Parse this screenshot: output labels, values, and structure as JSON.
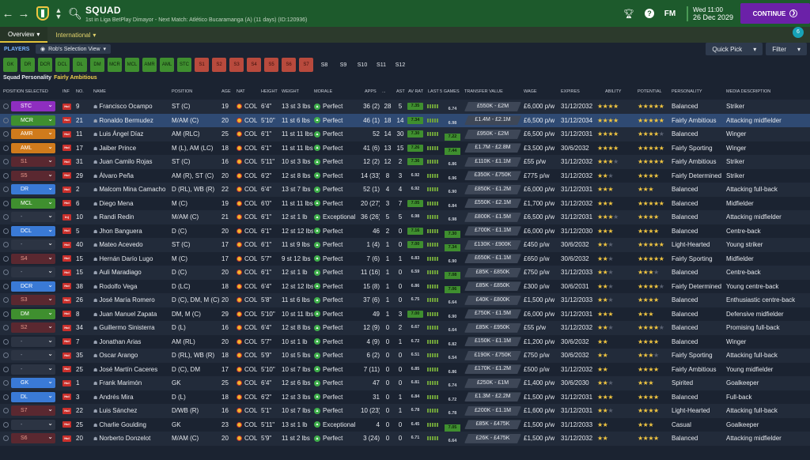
{
  "header": {
    "title": "SQUAD",
    "subtitle": "1st in Liga BetPlay Dimayor - Next Match: Atlético Bucaramanga (A) (11 days) (ID:120936)",
    "date_line1": "Wed 11:00",
    "date_line2": "26 Dec 2029",
    "continue_label": "CONTINUE",
    "fm_label": "FM",
    "icons": [
      "back-arrow-icon",
      "forward-arrow-icon",
      "club-badge",
      "search-icon",
      "trophy-icon",
      "help-icon"
    ]
  },
  "tabs": [
    {
      "label": "Overview",
      "active": true
    },
    {
      "label": "International",
      "active": false
    }
  ],
  "notification_count": "6",
  "toolbar": {
    "players_label": "PLAYERS",
    "view_label": "Rob's Selection View",
    "quick_pick_label": "Quick Pick",
    "filter_label": "Filter"
  },
  "position_chips": [
    {
      "label": "GK",
      "state": "g"
    },
    {
      "label": "DR",
      "state": "g"
    },
    {
      "label": "DCR",
      "state": "g"
    },
    {
      "label": "DCL",
      "state": "g"
    },
    {
      "label": "DL",
      "state": "g"
    },
    {
      "label": "DM",
      "state": "g"
    },
    {
      "label": "MCR",
      "state": "g"
    },
    {
      "label": "MCL",
      "state": "g"
    },
    {
      "label": "AMR",
      "state": "g"
    },
    {
      "label": "AML",
      "state": "g"
    },
    {
      "label": "STC",
      "state": "g"
    },
    {
      "label": "S1",
      "state": "r"
    },
    {
      "label": "S2",
      "state": "r"
    },
    {
      "label": "S3",
      "state": "r"
    },
    {
      "label": "S4",
      "state": "r"
    },
    {
      "label": "S5",
      "state": "r"
    },
    {
      "label": "S6",
      "state": "r"
    },
    {
      "label": "S7",
      "state": "r"
    },
    {
      "label": "S8",
      "state": "n"
    },
    {
      "label": "S9",
      "state": "n"
    },
    {
      "label": "S10",
      "state": "n"
    },
    {
      "label": "S11",
      "state": "n"
    },
    {
      "label": "S12",
      "state": "n"
    }
  ],
  "squad_personality_label": "Squad Personality",
  "squad_personality_value": "Fairly Ambitious",
  "columns": [
    "POSITION SELECTED",
    "INF",
    "NO.",
    "NAME",
    "POSITION",
    "AGE",
    "NAT",
    "HEIGHT",
    "WEIGHT",
    "MORALE",
    "APPS",
    "...",
    "AST",
    "AV RAT",
    "LAST 5 GAMES",
    "TRANSFER VALUE",
    "WAGE",
    "EXPIRES",
    "ABILITY",
    "POTENTIAL",
    "PERSONALITY",
    "MEDIA DESCRIPTION"
  ],
  "players": [
    {
      "sel": "STC",
      "style": "p-purple",
      "inf": "Hol",
      "no": "9",
      "name": "Francisco Ocampo",
      "pos": "ST (C)",
      "age": "19",
      "nat": "COL",
      "ht": "6'4\"",
      "wt": "13 st 3 lbs",
      "morale": "Perfect",
      "apps": "36 (2)",
      "gls": "28",
      "ast": "5",
      "avr": "7.35",
      "avr_c": "hi",
      "l5": "6.74",
      "l5_c": "lo",
      "tv": "£550K - £2M",
      "wage": "£6,000 p/w",
      "exp": "31/12/2032",
      "ab": "★★★★",
      "ab_e": "",
      "pot": "★★★★★",
      "pot_e": "",
      "pers": "Balanced",
      "media": "Striker"
    },
    {
      "sel": "MCR",
      "style": "p-green",
      "inf": "Hol",
      "no": "21",
      "name": "Ronaldo Bermudez",
      "pos": "M/AM (C)",
      "age": "20",
      "nat": "COL",
      "ht": "5'10\"",
      "wt": "11 st 6 lbs",
      "morale": "Perfect",
      "apps": "46 (1)",
      "gls": "18",
      "ast": "14",
      "avr": "7.34",
      "avr_c": "hi",
      "l5": "6.98",
      "l5_c": "lo",
      "tv": "£1.4M - £2.1M",
      "wage": "£6,500 p/w",
      "exp": "31/12/2034",
      "ab": "★★★★",
      "ab_e": "",
      "pot": "★★★★★",
      "pot_e": "",
      "pers": "Fairly Ambitious",
      "media": "Attacking midfielder",
      "selected": true
    },
    {
      "sel": "AMR",
      "style": "p-orange",
      "inf": "Hol",
      "no": "11",
      "name": "Luis Ángel Díaz",
      "pos": "AM (RLC)",
      "age": "25",
      "nat": "COL",
      "ht": "6'1\"",
      "wt": "11 st 11 lbs",
      "morale": "Perfect",
      "apps": "52",
      "gls": "14",
      "ast": "30",
      "avr": "7.30",
      "avr_c": "hi",
      "l5": "7.22",
      "l5_c": "hi",
      "tv": "£950K - £2M",
      "wage": "£6,500 p/w",
      "exp": "31/12/2031",
      "ab": "★★★★",
      "ab_e": "",
      "pot": "★★★★",
      "pot_e": "★",
      "pers": "Balanced",
      "media": "Winger"
    },
    {
      "sel": "AML",
      "style": "p-orange",
      "inf": "Hol",
      "no": "17",
      "name": "Jaiber Prince",
      "pos": "M (L), AM (LC)",
      "age": "18",
      "nat": "COL",
      "ht": "6'1\"",
      "wt": "11 st 11 lbs",
      "morale": "Perfect",
      "apps": "41 (6)",
      "gls": "13",
      "ast": "15",
      "avr": "7.26",
      "avr_c": "hi",
      "l5": "7.44",
      "l5_c": "hi",
      "tv": "£1.7M - £2.8M",
      "wage": "£3,500 p/w",
      "exp": "30/6/2032",
      "ab": "★★★★",
      "ab_e": "",
      "pot": "★★★★★",
      "pot_e": "",
      "pers": "Fairly Sporting",
      "media": "Winger"
    },
    {
      "sel": "S1",
      "style": "p-red",
      "inf": "Hol",
      "no": "31",
      "name": "Juan Camilo Rojas",
      "pos": "ST (C)",
      "age": "16",
      "nat": "COL",
      "ht": "5'11\"",
      "wt": "10 st 3 lbs",
      "morale": "Perfect",
      "apps": "12 (2)",
      "gls": "12",
      "ast": "2",
      "avr": "7.36",
      "avr_c": "hi",
      "l5": "6.86",
      "l5_c": "lo",
      "tv": "£110K - £1.1M",
      "wage": "£55 p/w",
      "exp": "31/12/2032",
      "ab": "★★★",
      "ab_e": "★",
      "pot": "★★★★★",
      "pot_e": "",
      "pers": "Fairly Ambitious",
      "media": "Striker"
    },
    {
      "sel": "S5",
      "style": "p-red",
      "inf": "Hol",
      "no": "29",
      "name": "Álvaro Peña",
      "pos": "AM (R), ST (C)",
      "age": "20",
      "nat": "COL",
      "ht": "6'2\"",
      "wt": "12 st 8 lbs",
      "morale": "Perfect",
      "apps": "14 (33)",
      "gls": "8",
      "ast": "3",
      "avr": "6.92",
      "avr_c": "lo",
      "l5": "6.96",
      "l5_c": "lo",
      "tv": "£350K - £750K",
      "wage": "£775 p/w",
      "exp": "31/12/2032",
      "ab": "★★",
      "ab_e": "★",
      "pot": "★★★★",
      "pot_e": "",
      "pers": "Fairly Determined",
      "media": "Striker"
    },
    {
      "sel": "DR",
      "style": "p-blue",
      "inf": "Hol",
      "no": "2",
      "name": "Malcom Mina Camacho",
      "pos": "D (RL), WB (R)",
      "age": "22",
      "nat": "COL",
      "ht": "6'4\"",
      "wt": "13 st 7 lbs",
      "morale": "Perfect",
      "apps": "52 (1)",
      "gls": "4",
      "ast": "4",
      "avr": "6.92",
      "avr_c": "lo",
      "l5": "6.90",
      "l5_c": "lo",
      "tv": "£850K - £1.2M",
      "wage": "£6,000 p/w",
      "exp": "31/12/2031",
      "ab": "★★★",
      "ab_e": "",
      "pot": "★★★",
      "pot_e": "",
      "pers": "Balanced",
      "media": "Attacking full-back"
    },
    {
      "sel": "MCL",
      "style": "p-green",
      "inf": "Hol",
      "no": "6",
      "name": "Diego Mena",
      "pos": "M (C)",
      "age": "19",
      "nat": "COL",
      "ht": "6'0\"",
      "wt": "11 st 11 lbs",
      "morale": "Perfect",
      "apps": "20 (27)",
      "gls": "3",
      "ast": "7",
      "avr": "7.05",
      "avr_c": "hi",
      "l5": "6.84",
      "l5_c": "lo",
      "tv": "£550K - £2.1M",
      "wage": "£1,700 p/w",
      "exp": "31/12/2032",
      "ab": "★★★",
      "ab_e": "",
      "pot": "★★★★★",
      "pot_e": "",
      "pers": "Balanced",
      "media": "Midfielder"
    },
    {
      "sel": "-",
      "style": "p-dark",
      "inf": "Inj",
      "no": "10",
      "name": "Randi Redin",
      "pos": "M/AM (C)",
      "age": "21",
      "nat": "COL",
      "ht": "6'1\"",
      "wt": "12 st 1 lb",
      "morale": "Exceptional",
      "apps": "36 (26)",
      "gls": "5",
      "ast": "5",
      "avr": "6.98",
      "avr_c": "lo",
      "l5": "6.98",
      "l5_c": "lo",
      "tv": "£800K - £1.5M",
      "wage": "£6,500 p/w",
      "exp": "31/12/2031",
      "ab": "★★★",
      "ab_e": "★",
      "pot": "★★★★",
      "pot_e": "",
      "pers": "Balanced",
      "media": "Attacking midfielder"
    },
    {
      "sel": "DCL",
      "style": "p-blue",
      "inf": "Hol",
      "no": "5",
      "name": "Jhon Banguera",
      "pos": "D (C)",
      "age": "20",
      "nat": "COL",
      "ht": "6'1\"",
      "wt": "12 st 12 lbs",
      "morale": "Perfect",
      "apps": "46",
      "gls": "2",
      "ast": "0",
      "avr": "7.16",
      "avr_c": "hi",
      "l5": "7.30",
      "l5_c": "hi",
      "tv": "£700K - £1.1M",
      "wage": "£6,000 p/w",
      "exp": "31/12/2030",
      "ab": "★★★",
      "ab_e": "",
      "pot": "★★★★",
      "pot_e": "",
      "pers": "Balanced",
      "media": "Centre-back"
    },
    {
      "sel": "-",
      "style": "p-dark",
      "inf": "Hol",
      "no": "40",
      "name": "Mateo Acevedo",
      "pos": "ST (C)",
      "age": "17",
      "nat": "COL",
      "ht": "6'1\"",
      "wt": "11 st 9 lbs",
      "morale": "Perfect",
      "apps": "1 (4)",
      "gls": "1",
      "ast": "0",
      "avr": "7.00",
      "avr_c": "hi",
      "l5": "7.34",
      "l5_c": "hi",
      "tv": "£130K - £900K",
      "wage": "£450 p/w",
      "exp": "30/6/2032",
      "ab": "★★",
      "ab_e": "★",
      "pot": "★★★★★",
      "pot_e": "",
      "pers": "Light-Hearted",
      "media": "Young striker"
    },
    {
      "sel": "S4",
      "style": "p-red",
      "inf": "Hol",
      "no": "15",
      "name": "Hernán Darío Lugo",
      "pos": "M (C)",
      "age": "17",
      "nat": "COL",
      "ht": "5'7\"",
      "wt": "9 st 12 lbs",
      "morale": "Perfect",
      "apps": "7 (6)",
      "gls": "1",
      "ast": "1",
      "avr": "6.83",
      "avr_c": "lo",
      "l5": "6.90",
      "l5_c": "lo",
      "tv": "£650K - £1.1M",
      "wage": "£650 p/w",
      "exp": "30/6/2032",
      "ab": "★★",
      "ab_e": "★",
      "pot": "★★★★★",
      "pot_e": "",
      "pers": "Fairly Sporting",
      "media": "Midfielder"
    },
    {
      "sel": "-",
      "style": "p-dark",
      "inf": "Hol",
      "no": "15",
      "name": "Auli Maradiago",
      "pos": "D (C)",
      "age": "20",
      "nat": "COL",
      "ht": "6'1\"",
      "wt": "12 st 1 lb",
      "morale": "Perfect",
      "apps": "11 (16)",
      "gls": "1",
      "ast": "0",
      "avr": "6.59",
      "avr_c": "lo",
      "l5": "7.08",
      "l5_c": "hi",
      "tv": "£85K - £850K",
      "wage": "£750 p/w",
      "exp": "31/12/2033",
      "ab": "★★",
      "ab_e": "★",
      "pot": "★★★",
      "pot_e": "★",
      "pers": "Balanced",
      "media": "Centre-back"
    },
    {
      "sel": "DCR",
      "style": "p-blue",
      "inf": "Hol",
      "no": "38",
      "name": "Rodolfo Vega",
      "pos": "D (LC)",
      "age": "18",
      "nat": "COL",
      "ht": "6'4\"",
      "wt": "12 st 12 lbs",
      "morale": "Perfect",
      "apps": "15 (8)",
      "gls": "1",
      "ast": "0",
      "avr": "6.86",
      "avr_c": "lo",
      "l5": "7.06",
      "l5_c": "hi",
      "tv": "£85K - £850K",
      "wage": "£300 p/w",
      "exp": "30/6/2031",
      "ab": "★★",
      "ab_e": "★",
      "pot": "★★★★",
      "pot_e": "★",
      "pers": "Fairly Determined",
      "media": "Young centre-back"
    },
    {
      "sel": "S3",
      "style": "p-red",
      "inf": "Hol",
      "no": "26",
      "name": "José María Romero",
      "pos": "D (C), DM, M (C)",
      "age": "20",
      "nat": "COL",
      "ht": "5'8\"",
      "wt": "11 st 6 lbs",
      "morale": "Perfect",
      "apps": "37 (6)",
      "gls": "1",
      "ast": "0",
      "avr": "6.75",
      "avr_c": "lo",
      "l5": "6.64",
      "l5_c": "lo",
      "tv": "£40K - £800K",
      "wage": "£1,500 p/w",
      "exp": "31/12/2033",
      "ab": "★★",
      "ab_e": "★",
      "pot": "★★★★",
      "pot_e": "",
      "pers": "Balanced",
      "media": "Enthusiastic centre-back"
    },
    {
      "sel": "DM",
      "style": "p-green",
      "inf": "Hol",
      "no": "8",
      "name": "Juan Manuel Zapata",
      "pos": "DM, M (C)",
      "age": "29",
      "nat": "COL",
      "ht": "5'10\"",
      "wt": "10 st 11 lbs",
      "morale": "Perfect",
      "apps": "49",
      "gls": "1",
      "ast": "3",
      "avr": "7.00",
      "avr_c": "hi",
      "l5": "6.90",
      "l5_c": "lo",
      "tv": "£750K - £1.5M",
      "wage": "£6,000 p/w",
      "exp": "31/12/2031",
      "ab": "★★★",
      "ab_e": "",
      "pot": "★★★",
      "pot_e": "",
      "pers": "Balanced",
      "media": "Defensive midfielder"
    },
    {
      "sel": "S2",
      "style": "p-red",
      "inf": "Hol",
      "no": "34",
      "name": "Guillermo Sinisterra",
      "pos": "D (L)",
      "age": "16",
      "nat": "COL",
      "ht": "6'4\"",
      "wt": "12 st 8 lbs",
      "morale": "Perfect",
      "apps": "12 (9)",
      "gls": "0",
      "ast": "2",
      "avr": "6.67",
      "avr_c": "lo",
      "l5": "6.64",
      "l5_c": "lo",
      "tv": "£85K - £950K",
      "wage": "£55 p/w",
      "exp": "31/12/2032",
      "ab": "★★",
      "ab_e": "★",
      "pot": "★★★★",
      "pot_e": "★",
      "pers": "Balanced",
      "media": "Promising full-back"
    },
    {
      "sel": "-",
      "style": "p-dark",
      "inf": "Hol",
      "no": "7",
      "name": "Jonathan Arias",
      "pos": "AM (RL)",
      "age": "20",
      "nat": "COL",
      "ht": "5'7\"",
      "wt": "10 st 1 lb",
      "morale": "Perfect",
      "apps": "4 (9)",
      "gls": "0",
      "ast": "1",
      "avr": "6.72",
      "avr_c": "lo",
      "l5": "6.82",
      "l5_c": "lo",
      "tv": "£150K - £1.1M",
      "wage": "£1,200 p/w",
      "exp": "30/6/2032",
      "ab": "★★",
      "ab_e": "",
      "pot": "★★★★",
      "pot_e": "",
      "pers": "Balanced",
      "media": "Winger"
    },
    {
      "sel": "-",
      "style": "p-dark",
      "inf": "Hol",
      "no": "35",
      "name": "Oscar Arango",
      "pos": "D (RL), WB (R)",
      "age": "18",
      "nat": "COL",
      "ht": "5'9\"",
      "wt": "10 st 5 lbs",
      "morale": "Perfect",
      "apps": "6 (2)",
      "gls": "0",
      "ast": "0",
      "avr": "6.51",
      "avr_c": "lo",
      "l5": "6.54",
      "l5_c": "lo",
      "tv": "£190K - £750K",
      "wage": "£750 p/w",
      "exp": "30/6/2032",
      "ab": "★★",
      "ab_e": "",
      "pot": "★★★",
      "pot_e": "★",
      "pers": "Fairly Sporting",
      "media": "Attacking full-back"
    },
    {
      "sel": "-",
      "style": "p-dark",
      "inf": "Hol",
      "no": "25",
      "name": "José Martín Caceres",
      "pos": "D (C), DM",
      "age": "17",
      "nat": "COL",
      "ht": "5'10\"",
      "wt": "10 st 7 lbs",
      "morale": "Perfect",
      "apps": "7 (11)",
      "gls": "0",
      "ast": "0",
      "avr": "6.85",
      "avr_c": "lo",
      "l5": "6.86",
      "l5_c": "lo",
      "tv": "£170K - £1.2M",
      "wage": "£500 p/w",
      "exp": "31/12/2032",
      "ab": "★★",
      "ab_e": "",
      "pot": "★★★★",
      "pot_e": "",
      "pers": "Fairly Ambitious",
      "media": "Young midfielder"
    },
    {
      "sel": "GK",
      "style": "p-blue",
      "inf": "Hol",
      "no": "1",
      "name": "Frank Marimón",
      "pos": "GK",
      "age": "25",
      "nat": "COL",
      "ht": "6'4\"",
      "wt": "12 st 6 lbs",
      "morale": "Perfect",
      "apps": "47",
      "gls": "0",
      "ast": "0",
      "avr": "6.81",
      "avr_c": "lo",
      "l5": "6.74",
      "l5_c": "lo",
      "tv": "£250K - £1M",
      "wage": "£1,400 p/w",
      "exp": "30/6/2030",
      "ab": "★★",
      "ab_e": "★",
      "pot": "★★★",
      "pot_e": "",
      "pers": "Spirited",
      "media": "Goalkeeper"
    },
    {
      "sel": "DL",
      "style": "p-blue",
      "inf": "Hol",
      "no": "3",
      "name": "Andrés Mira",
      "pos": "D (L)",
      "age": "18",
      "nat": "COL",
      "ht": "6'2\"",
      "wt": "12 st 3 lbs",
      "morale": "Perfect",
      "apps": "31",
      "gls": "0",
      "ast": "1",
      "avr": "6.84",
      "avr_c": "lo",
      "l5": "6.72",
      "l5_c": "lo",
      "tv": "£1.3M - £2.2M",
      "wage": "£1,500 p/w",
      "exp": "31/12/2031",
      "ab": "★★★",
      "ab_e": "",
      "pot": "★★★★",
      "pot_e": "",
      "pers": "Balanced",
      "media": "Full-back"
    },
    {
      "sel": "S7",
      "style": "p-red",
      "inf": "Hol",
      "no": "22",
      "name": "Luis Sánchez",
      "pos": "D/WB (R)",
      "age": "16",
      "nat": "COL",
      "ht": "5'1\"",
      "wt": "10 st 7 lbs",
      "morale": "Perfect",
      "apps": "10 (23)",
      "gls": "0",
      "ast": "1",
      "avr": "6.78",
      "avr_c": "lo",
      "l5": "6.78",
      "l5_c": "lo",
      "tv": "£200K - £1.1M",
      "wage": "£1,600 p/w",
      "exp": "31/12/2031",
      "ab": "★★",
      "ab_e": "★",
      "pot": "★★★★",
      "pot_e": "",
      "pers": "Light-Hearted",
      "media": "Attacking full-back"
    },
    {
      "sel": "-",
      "style": "p-dark",
      "inf": "Hol",
      "no": "25",
      "name": "Charlie Goulding",
      "pos": "GK",
      "age": "23",
      "nat": "COL",
      "ht": "5'11\"",
      "wt": "13 st 1 lb",
      "morale": "Exceptional",
      "apps": "4",
      "gls": "0",
      "ast": "0",
      "avr": "6.45",
      "avr_c": "lo",
      "l5": "7.05",
      "l5_c": "hi",
      "tv": "£85K - £475K",
      "wage": "£1,500 p/w",
      "exp": "31/12/2033",
      "ab": "★★",
      "ab_e": "",
      "pot": "★★★",
      "pot_e": "",
      "pers": "Casual",
      "media": "Goalkeeper"
    },
    {
      "sel": "S6",
      "style": "p-red",
      "inf": "Hol",
      "no": "20",
      "name": "Norberto Donzelot",
      "pos": "M/AM (C)",
      "age": "20",
      "nat": "COL",
      "ht": "5'9\"",
      "wt": "11 st 2 lbs",
      "morale": "Perfect",
      "apps": "3 (24)",
      "gls": "0",
      "ast": "0",
      "avr": "6.71",
      "avr_c": "lo",
      "l5": "6.64",
      "l5_c": "lo",
      "tv": "£26K - £475K",
      "wage": "£1,500 p/w",
      "exp": "31/12/2032",
      "ab": "★★",
      "ab_e": "",
      "pot": "★★★★",
      "pot_e": "",
      "pers": "Balanced",
      "media": "Attacking midfielder"
    }
  ]
}
